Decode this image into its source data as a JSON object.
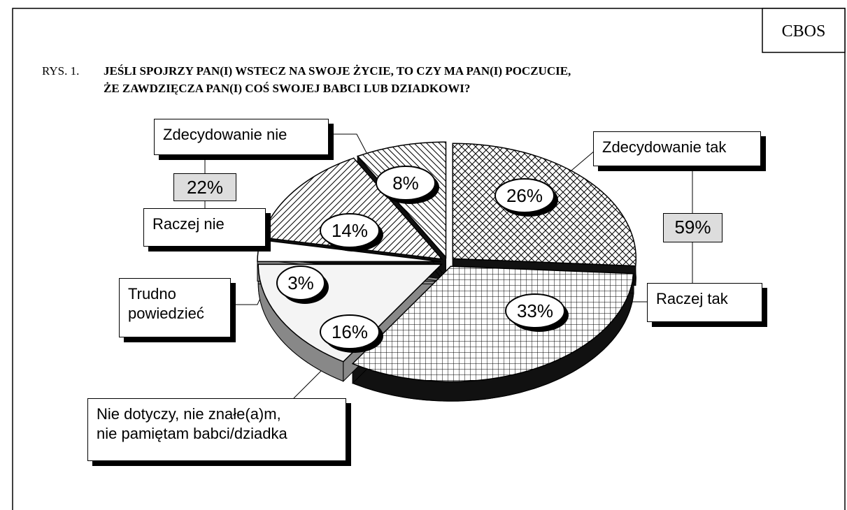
{
  "header": "CBOS",
  "chart_data": {
    "type": "pie",
    "figure_label": "RYS. 1.",
    "title": [
      "JEŚLI SPOJRZY PAN(I) WSTECZ NA SWOJE ŻYCIE, TO CZY MA PAN(I) POCZUCIE,",
      "ŻE ZAWDZIĘCZA PAN(I) COŚ SWOJEJ BABCI LUB DZIADKOWI?"
    ],
    "categories": [
      "Zdecydowanie tak",
      "Raczej tak",
      "Nie dotyczy, nie znałe(a)m,\nnie pamiętam babci/dziadka",
      "Trudno\npowiedzieć",
      "Raczej nie",
      "Zdecydowanie nie"
    ],
    "values": [
      26,
      33,
      16,
      3,
      14,
      8
    ],
    "value_labels": [
      "26%",
      "33%",
      "16%",
      "3%",
      "14%",
      "8%"
    ],
    "groups": [
      {
        "value": 59,
        "label": "59%"
      },
      {
        "value": 22,
        "label": "22%"
      }
    ]
  }
}
